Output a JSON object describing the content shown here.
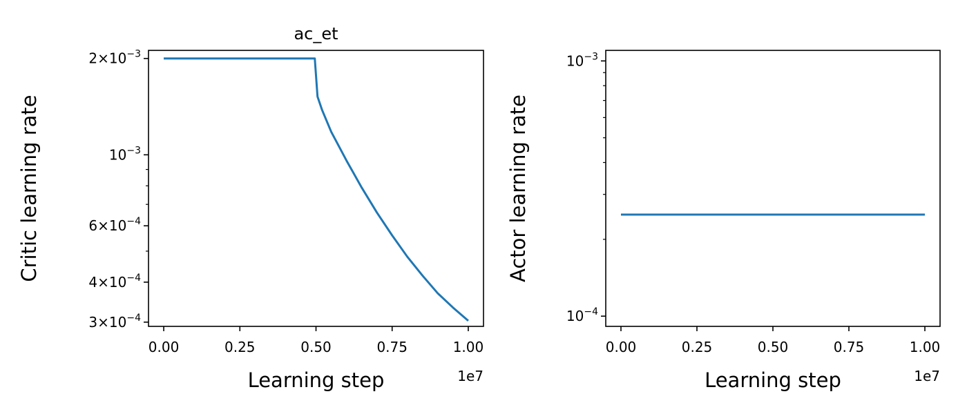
{
  "chart_data": [
    {
      "type": "line",
      "title": "ac_et",
      "xlabel": "Learning step",
      "ylabel": "Critic learning rate",
      "x_offset_label": "1e7",
      "yscale": "log",
      "xlim": [
        -0.05,
        1.05
      ],
      "ylim": [
        0.000291,
        0.00212
      ],
      "x_ticks": [
        {
          "value": 0.0,
          "label": "0.00"
        },
        {
          "value": 0.25,
          "label": "0.25"
        },
        {
          "value": 0.5,
          "label": "0.50"
        },
        {
          "value": 0.75,
          "label": "0.75"
        },
        {
          "value": 1.0,
          "label": "1.00"
        }
      ],
      "y_major_ticks": [
        {
          "value": 0.002,
          "mantissa": "2",
          "exp": "−3"
        },
        {
          "value": 0.001,
          "mantissa": "",
          "exp": "−3"
        },
        {
          "value": 0.0006,
          "mantissa": "6",
          "exp": "−4"
        },
        {
          "value": 0.0004,
          "mantissa": "4",
          "exp": "−4"
        },
        {
          "value": 0.0003,
          "mantissa": "3",
          "exp": "−4"
        }
      ],
      "y_minor_ticks": [
        0.0005,
        0.0007,
        0.0008,
        0.0009
      ],
      "series": [
        {
          "color": "#1f77b4",
          "x": [
            0.0,
            0.1,
            0.2,
            0.3,
            0.4,
            0.496,
            0.505,
            0.52,
            0.55,
            0.6,
            0.65,
            0.7,
            0.75,
            0.8,
            0.85,
            0.9,
            0.95,
            1.0
          ],
          "y": [
            0.002,
            0.002,
            0.002,
            0.002,
            0.002,
            0.002,
            0.00152,
            0.00138,
            0.00118,
            0.00096,
            0.00079,
            0.00066,
            0.00056,
            0.00048,
            0.000419,
            0.000369,
            0.000333,
            0.000303
          ]
        }
      ]
    },
    {
      "type": "line",
      "title": "",
      "xlabel": "Learning step",
      "ylabel": "Actor learning rate",
      "x_offset_label": "1e7",
      "yscale": "log",
      "xlim": [
        -0.05,
        1.05
      ],
      "ylim": [
        9.12e-05,
        0.0011
      ],
      "x_ticks": [
        {
          "value": 0.0,
          "label": "0.00"
        },
        {
          "value": 0.25,
          "label": "0.25"
        },
        {
          "value": 0.5,
          "label": "0.50"
        },
        {
          "value": 0.75,
          "label": "0.75"
        },
        {
          "value": 1.0,
          "label": "1.00"
        }
      ],
      "y_major_ticks": [
        {
          "value": 0.001,
          "mantissa": "",
          "exp": "−3"
        },
        {
          "value": 0.0001,
          "mantissa": "",
          "exp": "−4"
        }
      ],
      "y_minor_ticks": [
        0.0002,
        0.0003,
        0.0004,
        0.0005,
        0.0006,
        0.0007,
        0.0008,
        0.0009
      ],
      "series": [
        {
          "color": "#1f77b4",
          "x": [
            0.0,
            1.0
          ],
          "y": [
            0.00025,
            0.00025
          ]
        }
      ]
    }
  ]
}
